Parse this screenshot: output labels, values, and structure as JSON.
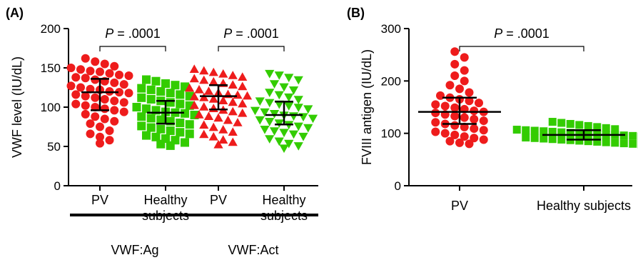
{
  "chart_data": [
    {
      "panel_label": "(A)",
      "type": "scatter",
      "ylabel": "VWF level (IU/dL)",
      "ylim": [
        0,
        200
      ],
      "yticks": [
        0,
        50,
        100,
        150,
        200
      ],
      "categories": [
        "PV",
        "Healthy\nsubjects",
        "PV",
        "Healthy\nsubjects"
      ],
      "groups": [
        {
          "label": "VWF:Ag",
          "categories": [
            0,
            1
          ]
        },
        {
          "label": "VWF:Act",
          "categories": [
            2,
            3
          ]
        }
      ],
      "annotations": [
        {
          "text_prefix": "P",
          "text_value": " = .0001",
          "between": [
            0,
            1
          ]
        },
        {
          "text_prefix": "P",
          "text_value": " = .0001",
          "between": [
            2,
            3
          ]
        }
      ],
      "series": [
        {
          "category": 0,
          "marker": "circle",
          "color": "#ee1c1c",
          "median": 119,
          "q1": 96,
          "q3": 136,
          "values": [
            162,
            158,
            155,
            152,
            150,
            148,
            146,
            145,
            143,
            141,
            140,
            138,
            137,
            135,
            133,
            131,
            129,
            127,
            125,
            123,
            122,
            120,
            119,
            118,
            116,
            114,
            112,
            110,
            108,
            106,
            104,
            102,
            100,
            98,
            96,
            94,
            91,
            88,
            85,
            82,
            79,
            75,
            70,
            66,
            62,
            58,
            54
          ]
        },
        {
          "category": 1,
          "marker": "square",
          "color": "#33cc00",
          "median": 93,
          "q1": 79,
          "q3": 108,
          "values": [
            135,
            133,
            130,
            128,
            126,
            124,
            122,
            120,
            118,
            116,
            114,
            112,
            110,
            108,
            106,
            104,
            102,
            100,
            98,
            96,
            94,
            93,
            92,
            90,
            88,
            86,
            84,
            82,
            80,
            78,
            76,
            74,
            72,
            70,
            68,
            66,
            64,
            62,
            60,
            58,
            55,
            53,
            51
          ]
        },
        {
          "category": 2,
          "marker": "triangle-up",
          "color": "#ee1c1c",
          "median": 114,
          "q1": 97,
          "q3": 128,
          "values": [
            148,
            146,
            144,
            142,
            140,
            138,
            136,
            134,
            132,
            130,
            128,
            126,
            124,
            122,
            120,
            118,
            116,
            115,
            114,
            113,
            112,
            110,
            108,
            106,
            104,
            102,
            100,
            98,
            96,
            94,
            92,
            90,
            88,
            86,
            83,
            80,
            77,
            74,
            71,
            68,
            65,
            62,
            58,
            55,
            52
          ]
        },
        {
          "category": 3,
          "marker": "triangle-down",
          "color": "#33cc00",
          "median": 90,
          "q1": 78,
          "q3": 107,
          "values": [
            143,
            141,
            138,
            135,
            130,
            126,
            122,
            119,
            116,
            113,
            110,
            108,
            106,
            104,
            102,
            100,
            98,
            96,
            94,
            92,
            90,
            89,
            88,
            86,
            84,
            82,
            80,
            78,
            76,
            74,
            72,
            70,
            68,
            66,
            63,
            60,
            57,
            54,
            51,
            48
          ]
        }
      ]
    },
    {
      "panel_label": "(B)",
      "type": "scatter",
      "ylabel": "FVIII antigen (IU/dL)",
      "ylim": [
        0,
        300
      ],
      "yticks": [
        0,
        100,
        200,
        300
      ],
      "categories": [
        "PV",
        "Healthy subjects"
      ],
      "annotations": [
        {
          "text_prefix": "P",
          "text_value": " = .0001",
          "between": [
            0,
            1
          ]
        }
      ],
      "series": [
        {
          "category": 0,
          "marker": "circle",
          "color": "#ee1c1c",
          "median": 141,
          "q1": 118,
          "q3": 168,
          "values": [
            256,
            245,
            232,
            220,
            210,
            200,
            192,
            185,
            178,
            172,
            168,
            165,
            162,
            158,
            155,
            152,
            149,
            146,
            143,
            141,
            139,
            136,
            133,
            130,
            127,
            124,
            121,
            118,
            115,
            112,
            109,
            106,
            103,
            100,
            97,
            94,
            91,
            88,
            85,
            82,
            80
          ]
        },
        {
          "category": 1,
          "marker": "square",
          "color": "#33cc00",
          "median": 97,
          "q1": 88,
          "q3": 106,
          "values": [
            122,
            120,
            118,
            116,
            114,
            112,
            110,
            108,
            107,
            106,
            105,
            104,
            103,
            102,
            101,
            100,
            99,
            98,
            97,
            97,
            96,
            95,
            94,
            93,
            92,
            91,
            90,
            89,
            88,
            87,
            86,
            85,
            84,
            83,
            82,
            81,
            80,
            79
          ]
        }
      ]
    }
  ]
}
